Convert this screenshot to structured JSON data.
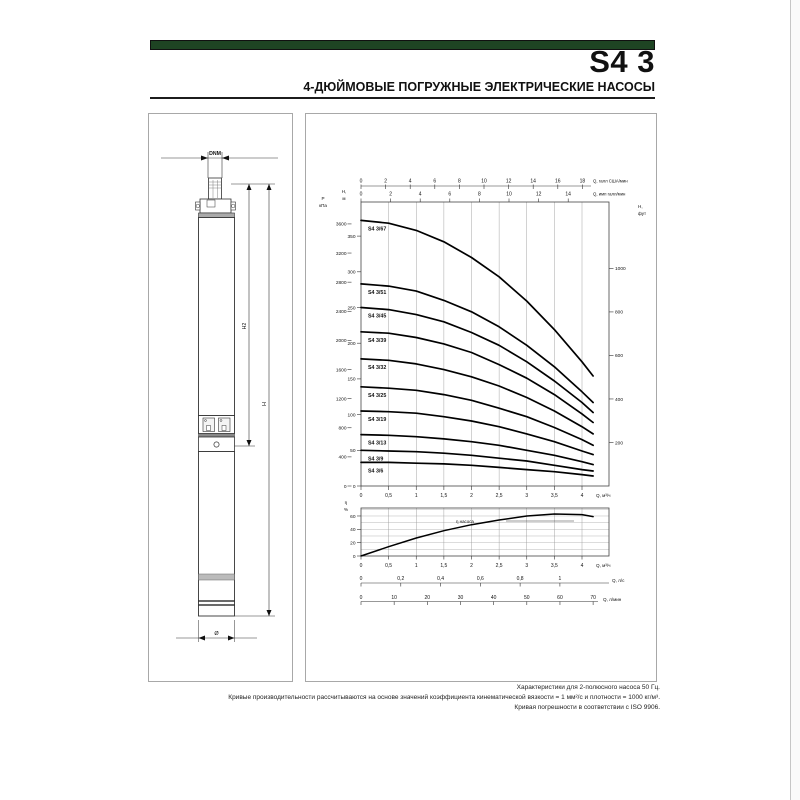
{
  "header": {
    "model": "S4 3",
    "subtitle": "4-ДЮЙМОВЫЕ ПОГРУЖНЫЕ ЭЛЕКТРИЧЕСКИЕ НАСОСЫ",
    "accent_color": "#1e4423"
  },
  "drawing": {
    "labels": {
      "dnm": "DNM",
      "h2": "H2",
      "h": "H",
      "diameter": "Ø"
    }
  },
  "chart_data": [
    {
      "type": "line",
      "title": "Напорные характеристики S4 3",
      "q_m3h": [
        0,
        0.5,
        1,
        1.5,
        2,
        2.5,
        3,
        3.5,
        4,
        4.2
      ],
      "xlim": [
        0,
        4.49
      ],
      "ylim_m": [
        0,
        398
      ],
      "grid": "vertical-only",
      "x_bottom": {
        "unit": "Q, м³/ч",
        "ticks": [
          [
            0,
            "0"
          ],
          [
            0.5,
            "0,5"
          ],
          [
            1,
            "1"
          ],
          [
            1.5,
            "1,5"
          ],
          [
            2,
            "2"
          ],
          [
            2.5,
            "2,5"
          ],
          [
            3,
            "3"
          ],
          [
            3.5,
            "3,5"
          ],
          [
            4,
            "4"
          ]
        ]
      },
      "x_top_us": {
        "unit": "Q, галл США/мин",
        "ticks": [
          0,
          2,
          4,
          6,
          8,
          10,
          12,
          14,
          16,
          18
        ]
      },
      "x_top_imp": {
        "unit": "Q, имп галл/мин",
        "ticks": [
          0,
          2,
          4,
          6,
          8,
          10,
          12,
          14
        ]
      },
      "y_left_m": {
        "unit_lines": [
          "H,",
          "м"
        ],
        "ticks": [
          0,
          50,
          100,
          150,
          200,
          250,
          300,
          350
        ]
      },
      "y_left_kpa": {
        "unit_lines": [
          "P",
          "кПа"
        ],
        "ticks": [
          0,
          400,
          800,
          1200,
          1600,
          2000,
          2400,
          2800,
          3200,
          3600
        ]
      },
      "y_right_ft": {
        "unit_lines": [
          "H,",
          "фут"
        ],
        "ticks": [
          200,
          400,
          600,
          800,
          1000
        ]
      },
      "series": [
        {
          "name": "S4 3/67",
          "heads_m": [
            372,
            368,
            358,
            342,
            320,
            293,
            259,
            219,
            174,
            154
          ]
        },
        {
          "name": "S4 3/51",
          "heads_m": [
            283,
            280,
            273,
            260,
            244,
            223,
            197,
            167,
            132,
            117
          ]
        },
        {
          "name": "S4 3/45",
          "heads_m": [
            250,
            247,
            240,
            230,
            215,
            197,
            174,
            147,
            117,
            103
          ]
        },
        {
          "name": "S4 3/39",
          "heads_m": [
            216,
            214,
            208,
            199,
            187,
            170,
            151,
            128,
            101,
            89
          ]
        },
        {
          "name": "S4 3/32",
          "heads_m": [
            178,
            176,
            171,
            163,
            153,
            140,
            124,
            105,
            83,
            73
          ]
        },
        {
          "name": "S4 3/25",
          "heads_m": [
            139,
            137,
            134,
            128,
            120,
            109,
            97,
            82,
            65,
            57
          ]
        },
        {
          "name": "S4 3/19",
          "heads_m": [
            105,
            104,
            102,
            97,
            91,
            83,
            73,
            62,
            49,
            44
          ]
        },
        {
          "name": "S4 3/13",
          "heads_m": [
            72,
            71,
            69,
            66,
            62,
            57,
            50,
            43,
            34,
            30
          ]
        },
        {
          "name": "S4 3/9",
          "heads_m": [
            50,
            49,
            48,
            46,
            43,
            39,
            35,
            29,
            23,
            21
          ]
        },
        {
          "name": "S4 3/6",
          "heads_m": [
            33,
            33,
            32,
            31,
            29,
            26,
            23,
            20,
            16,
            14
          ]
        }
      ],
      "curve_color": "#000000"
    },
    {
      "type": "line",
      "title": "КПД",
      "q_m3h": [
        0,
        0.5,
        1,
        1.5,
        2,
        2.5,
        3,
        3.5,
        4,
        4.2
      ],
      "eta_pct": [
        0,
        14,
        27,
        38,
        47,
        54,
        60,
        63,
        62,
        59
      ],
      "annotation": "η насоса",
      "y": {
        "unit_lines": [
          "η",
          "%"
        ],
        "ticks": [
          [
            0,
            "0"
          ],
          [
            20,
            "20"
          ],
          [
            40,
            "40"
          ],
          [
            60,
            "60"
          ]
        ],
        "minor": [
          10,
          20,
          30,
          40,
          50,
          60,
          70
        ]
      },
      "x_bottom": {
        "unit": "Q, м³/ч",
        "ticks": [
          [
            0,
            "0"
          ],
          [
            0.5,
            "0,5"
          ],
          [
            1,
            "1"
          ],
          [
            1.5,
            "1,5"
          ],
          [
            2,
            "2"
          ],
          [
            2.5,
            "2,5"
          ],
          [
            3,
            "3"
          ],
          [
            3.5,
            "3,5"
          ],
          [
            4,
            "4"
          ]
        ]
      },
      "x_ls": {
        "unit": "Q, л/с",
        "ticks": [
          [
            0,
            "0"
          ],
          [
            0.2,
            "0,2"
          ],
          [
            0.4,
            "0,4"
          ],
          [
            0.6,
            "0,6"
          ],
          [
            0.8,
            "0,8"
          ],
          [
            1,
            "1"
          ]
        ]
      },
      "x_lmin": {
        "unit": "Q, л/мин",
        "ticks": [
          [
            0,
            "0"
          ],
          [
            10,
            "10"
          ],
          [
            20,
            "20"
          ],
          [
            30,
            "30"
          ],
          [
            40,
            "40"
          ],
          [
            50,
            "50"
          ],
          [
            60,
            "60"
          ],
          [
            70,
            "70"
          ]
        ]
      },
      "curve_color": "#000000"
    }
  ],
  "footer": {
    "lines": [
      "Характеристики для 2-полюсного насоса 50 Гц.",
      "Кривые производительности рассчитываются на основе значений коэффициента кинематической вязкости = 1 мм²/с и плотности = 1000 кг/м³.",
      "Кривая погрешности в соответствии с ISO 9906."
    ]
  }
}
